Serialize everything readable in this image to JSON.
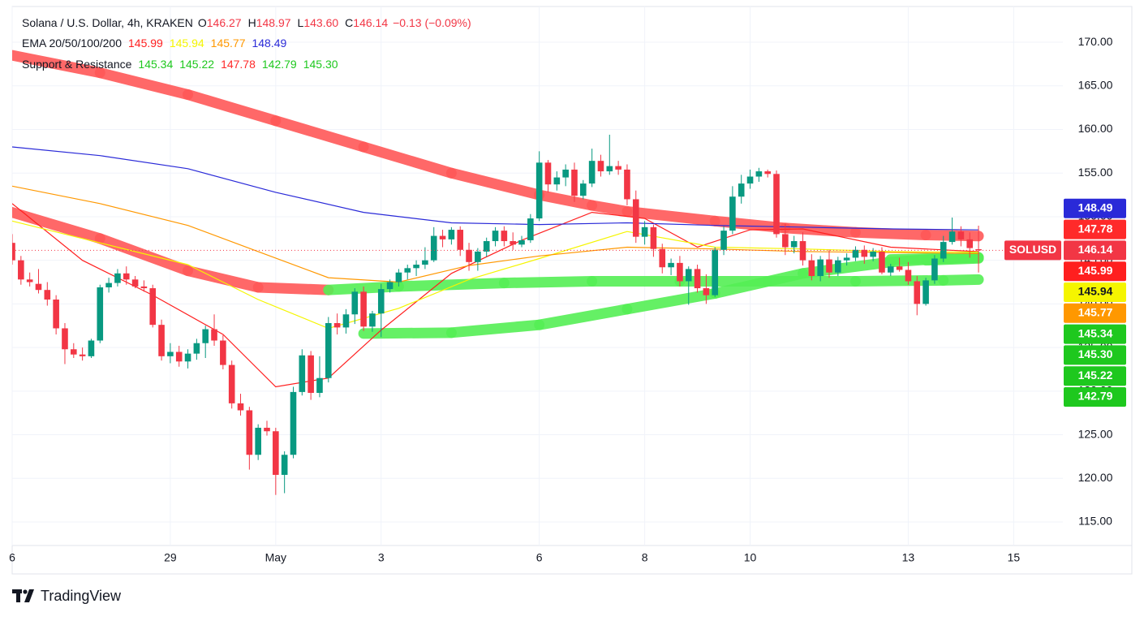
{
  "chart_data": {
    "type": "candlestick",
    "title": "Solana / U.S. Dollar, 4h, KRAKEN",
    "ohlc_labels": [
      "O",
      "H",
      "L",
      "C"
    ],
    "change": "−0.13 (−0.09%)",
    "symbol": "SOLUSD",
    "brand": "TradingView",
    "up_color": "#089981",
    "down_color": "#f23645",
    "grid": true,
    "xlim": [
      0,
      119.6
    ],
    "xticks": [
      {
        "value": 0,
        "label": "6"
      },
      {
        "value": 18,
        "label": "29"
      },
      {
        "value": 30,
        "label": "May"
      },
      {
        "value": 42,
        "label": "3"
      },
      {
        "value": 60,
        "label": "6"
      },
      {
        "value": 72,
        "label": "8"
      },
      {
        "value": 84,
        "label": "10"
      },
      {
        "value": 102,
        "label": "13"
      },
      {
        "value": 114,
        "label": "15"
      }
    ],
    "ylim": [
      112.3,
      174.1
    ],
    "yticks": [
      {
        "value": 115,
        "label": "115.00"
      },
      {
        "value": 120,
        "label": "120.00"
      },
      {
        "value": 125,
        "label": "125.00"
      },
      {
        "value": 130,
        "label": "130.00"
      },
      {
        "value": 135,
        "label": "135.00"
      },
      {
        "value": 140,
        "label": "140.00"
      },
      {
        "value": 145,
        "label": "145.00"
      },
      {
        "value": 150,
        "label": "150.00"
      },
      {
        "value": 155,
        "label": "155.00"
      },
      {
        "value": 160,
        "label": "160.00"
      },
      {
        "value": 165,
        "label": "165.00"
      },
      {
        "value": 170,
        "label": "170.00"
      }
    ],
    "candles": [
      [
        147,
        148,
        144.5,
        145
      ],
      [
        145,
        145.5,
        142.2,
        142.8
      ],
      [
        142.8,
        143.6,
        142,
        142.5
      ],
      [
        142.3,
        144,
        141.2,
        141.6
      ],
      [
        141.6,
        142.5,
        139.8,
        140.5
      ],
      [
        140.5,
        141,
        136.5,
        137.2
      ],
      [
        137.2,
        137.8,
        133.1,
        134.8
      ],
      [
        134.8,
        135.5,
        133.8,
        134.2
      ],
      [
        134.2,
        135,
        133.5,
        134
      ],
      [
        134,
        136,
        133.8,
        135.8
      ],
      [
        135.8,
        142.2,
        135.5,
        141.9
      ],
      [
        141.9,
        143,
        141.3,
        142.4
      ],
      [
        142.4,
        144,
        142,
        143.5
      ],
      [
        143.5,
        144.3,
        142.2,
        142.8
      ],
      [
        142.8,
        143.2,
        141.8,
        142
      ],
      [
        142,
        142.7,
        141.4,
        141.8
      ],
      [
        141.8,
        142.2,
        137.3,
        137.6
      ],
      [
        137.6,
        138.2,
        133.5,
        134
      ],
      [
        134,
        135.5,
        133.2,
        134.5
      ],
      [
        134.5,
        135.2,
        132.8,
        133.4
      ],
      [
        133.4,
        134.8,
        132.6,
        134.3
      ],
      [
        134.3,
        136,
        133.6,
        135.5
      ],
      [
        135.5,
        137.5,
        133.8,
        137.1
      ],
      [
        137.1,
        138.8,
        135.2,
        135.8
      ],
      [
        135.8,
        136.4,
        132.5,
        133
      ],
      [
        133,
        133.5,
        128,
        128.6
      ],
      [
        128.6,
        129.7,
        127.2,
        127.8
      ],
      [
        127.8,
        128.2,
        121,
        122.7
      ],
      [
        122.7,
        126.2,
        122.1,
        125.8
      ],
      [
        125.8,
        126.6,
        124.9,
        125.4
      ],
      [
        125.4,
        125.8,
        118.1,
        120.4
      ],
      [
        120.4,
        123.1,
        118.3,
        122.7
      ],
      [
        122.7,
        130.5,
        122.3,
        129.9
      ],
      [
        129.9,
        134.8,
        129.5,
        134.1
      ],
      [
        134.1,
        134.6,
        129,
        129.8
      ],
      [
        129.8,
        134,
        129.3,
        131.5
      ],
      [
        131.5,
        138.5,
        131,
        137.8
      ],
      [
        137.8,
        138.9,
        136.5,
        137.3
      ],
      [
        137.3,
        139.4,
        136.6,
        138.8
      ],
      [
        138.8,
        141.8,
        137.7,
        141.4
      ],
      [
        141.4,
        142,
        136.9,
        137.4
      ],
      [
        137.4,
        139.2,
        136.8,
        138.9
      ],
      [
        138.9,
        142.3,
        136.2,
        141.7
      ],
      [
        141.7,
        142.8,
        141.3,
        142.5
      ],
      [
        142.5,
        144,
        142,
        143.6
      ],
      [
        143.6,
        144.5,
        142.8,
        144.1
      ],
      [
        144.1,
        145,
        143.2,
        144.5
      ],
      [
        144.5,
        146.5,
        144,
        145
      ],
      [
        145,
        148.8,
        144.8,
        147.8
      ],
      [
        147.8,
        148.5,
        146.5,
        147.4
      ],
      [
        147.4,
        148.8,
        146.8,
        148.5
      ],
      [
        148.5,
        148.9,
        145.5,
        146.2
      ],
      [
        146.2,
        147,
        143.8,
        144.8
      ],
      [
        144.8,
        146.4,
        143.8,
        146
      ],
      [
        146,
        147.6,
        145.4,
        147.2
      ],
      [
        147.2,
        148.8,
        146.6,
        148.4
      ],
      [
        148.4,
        148.9,
        146.6,
        147.2
      ],
      [
        147.2,
        148.2,
        146.2,
        146.8
      ],
      [
        146.8,
        147.8,
        146.5,
        147.3
      ],
      [
        147.3,
        150.3,
        147,
        149.8
      ],
      [
        149.8,
        157.5,
        149.5,
        156.2
      ],
      [
        156.2,
        156.5,
        152.8,
        153.7
      ],
      [
        153.7,
        155.2,
        153,
        154.5
      ],
      [
        154.5,
        156,
        153.5,
        155.4
      ],
      [
        155.4,
        156.2,
        151.7,
        152.4
      ],
      [
        152.4,
        154.2,
        152,
        153.8
      ],
      [
        153.8,
        157.8,
        153.4,
        156.4
      ],
      [
        156.4,
        157.1,
        154.6,
        155.2
      ],
      [
        155.2,
        159.4,
        154.8,
        155.8
      ],
      [
        155.8,
        156.4,
        154.8,
        155.4
      ],
      [
        155.4,
        156,
        151.3,
        152
      ],
      [
        152,
        153,
        147,
        147.7
      ],
      [
        147.7,
        149.5,
        146.8,
        148.8
      ],
      [
        148.8,
        149.1,
        145.4,
        146.3
      ],
      [
        146.3,
        146.9,
        143.5,
        144.2
      ],
      [
        144.2,
        145.2,
        143.3,
        144.7
      ],
      [
        144.7,
        145.5,
        142,
        142.6
      ],
      [
        142.6,
        144.3,
        139.9,
        144
      ],
      [
        144,
        144.5,
        141.3,
        141.8
      ],
      [
        141.8,
        143.4,
        140,
        141
      ],
      [
        141,
        146.5,
        140.8,
        146.2
      ],
      [
        146.2,
        148.9,
        145.6,
        148.4
      ],
      [
        148.4,
        153.5,
        148,
        152.3
      ],
      [
        152.3,
        154.8,
        151.5,
        153.8
      ],
      [
        153.8,
        155.4,
        153.2,
        154.6
      ],
      [
        154.6,
        155.6,
        154,
        155.2
      ],
      [
        155.2,
        155.4,
        154.5,
        154.9
      ],
      [
        154.9,
        155.3,
        147.6,
        148
      ],
      [
        148,
        149.2,
        145.6,
        146.5
      ],
      [
        146.5,
        147.8,
        145.8,
        147.2
      ],
      [
        147.2,
        148.2,
        144.4,
        145
      ],
      [
        145,
        145.7,
        142.7,
        143.2
      ],
      [
        143.2,
        145.5,
        142.6,
        145.1
      ],
      [
        145.1,
        146.2,
        143,
        143.6
      ],
      [
        143.6,
        145.4,
        143.2,
        145
      ],
      [
        145,
        145.8,
        144.4,
        145.3
      ],
      [
        145.3,
        146.6,
        144.9,
        146.2
      ],
      [
        146.2,
        146.7,
        144.6,
        145.4
      ],
      [
        145.4,
        146.4,
        144.9,
        146
      ],
      [
        146,
        146.5,
        143.4,
        143.6
      ],
      [
        143.6,
        144.6,
        143.2,
        144.3
      ],
      [
        144.3,
        145.3,
        143.7,
        143.9
      ],
      [
        143.9,
        144.8,
        142.2,
        142.6
      ],
      [
        142.6,
        143.2,
        138.7,
        140
      ],
      [
        140,
        143,
        139.8,
        142.7
      ],
      [
        142.7,
        145.6,
        142.3,
        145.2
      ],
      [
        145.2,
        147.8,
        144.8,
        147.1
      ],
      [
        147.1,
        149.9,
        146.8,
        148.3
      ],
      [
        148.3,
        148.9,
        146.6,
        147.4
      ],
      [
        147.4,
        148.2,
        145.3,
        146.4
      ],
      [
        146.27,
        148.97,
        {
          "value": 143.6,
          "label": "143.60"
        },
        146.14
      ]
    ],
    "ema": {
      "name": "EMA 20/50/100/200",
      "series": [
        {
          "color": "#ff1f1f",
          "x": [
            0,
            8,
            16,
            24,
            30,
            36,
            42,
            50,
            58,
            66,
            72,
            78,
            84,
            90,
            100,
            110
          ],
          "values": [
            151.5,
            145,
            141,
            136.5,
            130.5,
            131.5,
            137,
            143.5,
            147.3,
            150.5,
            149.8,
            146.5,
            148.5,
            148.6,
            146.5,
            145.99
          ]
        },
        {
          "color": "#f5f500",
          "x": [
            0,
            10,
            20,
            28,
            36,
            44,
            52,
            60,
            70,
            80,
            90,
            100,
            110
          ],
          "values": [
            149.5,
            147,
            144.5,
            140.5,
            137.2,
            139.5,
            142.8,
            145.2,
            148.3,
            146.5,
            146.3,
            146,
            145.94
          ]
        },
        {
          "color": "#ff9800",
          "x": [
            0,
            10,
            20,
            28,
            36,
            44,
            52,
            60,
            70,
            80,
            90,
            100,
            110
          ],
          "values": [
            153.5,
            151.5,
            149,
            146,
            143,
            142.5,
            144.4,
            145.5,
            146.5,
            146.3,
            146,
            145.9,
            145.77
          ]
        },
        {
          "color": "#2a2ad8",
          "x": [
            0,
            10,
            20,
            30,
            40,
            50,
            60,
            70,
            80,
            90,
            100,
            110
          ],
          "values": [
            158,
            157,
            155.5,
            152.8,
            150.5,
            149.3,
            149.1,
            149.3,
            149,
            148.8,
            148.6,
            148.49
          ]
        }
      ]
    },
    "sr": {
      "name": "Support & Resistance",
      "up_color": "#55ef55",
      "down_color": "#ff5858",
      "series": [
        {
          "color": "#1ec81e",
          "x": [
            40,
            50,
            60,
            70,
            80,
            90,
            100,
            106,
            110
          ],
          "values": [
            136.6,
            136.7,
            137.6,
            139.4,
            141.2,
            143.5,
            144.8,
            145.2,
            145.34
          ]
        },
        {
          "color": "#1ec81e",
          "x": [
            104,
            110
          ],
          "values": [
            145,
            145.22
          ]
        },
        {
          "color": "#ff2a2a",
          "x": [
            0,
            10,
            20,
            30,
            40,
            50,
            60,
            66,
            70,
            80,
            88,
            96,
            104,
            110
          ],
          "values": [
            168.5,
            166.5,
            164,
            161,
            158,
            155,
            152.5,
            151.3,
            150.6,
            149.5,
            148.7,
            148.2,
            147.9,
            147.78
          ]
        },
        {
          "color": "#1ec81e",
          "x": [
            0,
            10,
            20,
            28,
            36,
            44,
            56,
            66,
            76,
            86,
            96,
            106,
            110
          ],
          "values": [
            150.5,
            147.5,
            143.8,
            141.9,
            141.6,
            142,
            142.4,
            142.6,
            142.6,
            142.6,
            142.6,
            142.7,
            142.79
          ]
        },
        {
          "color": "#1ec81e",
          "x": [
            100,
            110
          ],
          "values": [
            145.1,
            {
              "value": 145.3,
              "label": "145.30"
            }
          ]
        }
      ]
    }
  }
}
